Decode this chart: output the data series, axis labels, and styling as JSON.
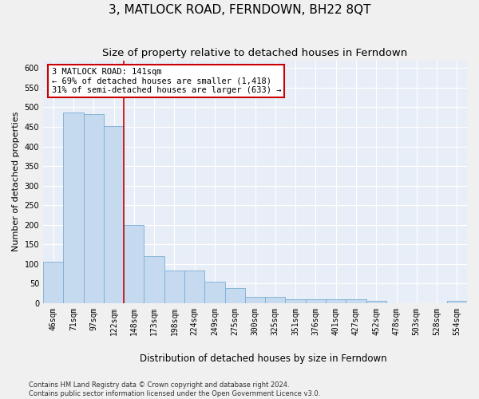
{
  "title": "3, MATLOCK ROAD, FERNDOWN, BH22 8QT",
  "subtitle": "Size of property relative to detached houses in Ferndown",
  "xlabel": "Distribution of detached houses by size in Ferndown",
  "ylabel": "Number of detached properties",
  "categories": [
    "46sqm",
    "71sqm",
    "97sqm",
    "122sqm",
    "148sqm",
    "173sqm",
    "198sqm",
    "224sqm",
    "249sqm",
    "275sqm",
    "300sqm",
    "325sqm",
    "351sqm",
    "376sqm",
    "401sqm",
    "427sqm",
    "452sqm",
    "478sqm",
    "503sqm",
    "528sqm",
    "554sqm"
  ],
  "bar_heights": [
    105,
    487,
    483,
    452,
    200,
    120,
    83,
    83,
    55,
    38,
    17,
    17,
    10,
    10,
    10,
    10,
    5,
    0,
    0,
    0,
    5
  ],
  "bar_color": "#c5d9ef",
  "bar_edge_color": "#7aaed4",
  "vline_pos": 3.5,
  "vline_color": "#cc0000",
  "annotation_line1": "3 MATLOCK ROAD: 141sqm",
  "annotation_line2": "← 69% of detached houses are smaller (1,418)",
  "annotation_line3": "31% of semi-detached houses are larger (633) →",
  "ylim_max": 620,
  "yticks": [
    0,
    50,
    100,
    150,
    200,
    250,
    300,
    350,
    400,
    450,
    500,
    550,
    600
  ],
  "footer": "Contains HM Land Registry data © Crown copyright and database right 2024.\nContains public sector information licensed under the Open Government Licence v3.0.",
  "fig_facecolor": "#f0f0f0",
  "ax_facecolor": "#e8eef7",
  "grid_color": "#ffffff",
  "title_fontsize": 11,
  "subtitle_fontsize": 9.5,
  "tick_fontsize": 7,
  "ylabel_fontsize": 8,
  "xlabel_fontsize": 8.5,
  "footer_fontsize": 6,
  "annot_fontsize": 7.5
}
